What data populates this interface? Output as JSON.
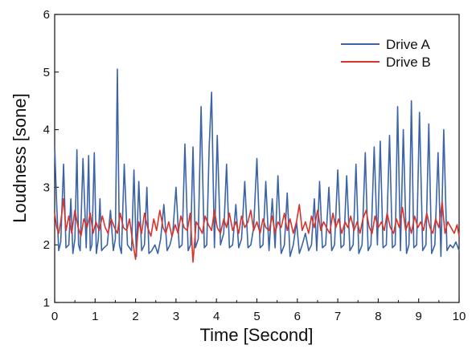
{
  "chart_data": {
    "type": "line",
    "xlabel": "Time [Second]",
    "ylabel": "Loudness [sone]",
    "xlim": [
      0,
      10
    ],
    "ylim": [
      1,
      6
    ],
    "x_ticks": [
      "0",
      "1",
      "2",
      "3",
      "4",
      "5",
      "6",
      "7",
      "8",
      "9",
      "10"
    ],
    "y_ticks": [
      "1",
      "2",
      "3",
      "4",
      "5",
      "6"
    ],
    "grid": false,
    "legend_position": "top-right",
    "series": [
      {
        "name": "Drive A",
        "color": "#3a63a8",
        "x": [
          0.0,
          0.05,
          0.1,
          0.15,
          0.22,
          0.28,
          0.35,
          0.4,
          0.45,
          0.5,
          0.55,
          0.59,
          0.63,
          0.7,
          0.78,
          0.84,
          0.88,
          0.92,
          0.98,
          1.03,
          1.08,
          1.12,
          1.16,
          1.22,
          1.3,
          1.38,
          1.45,
          1.5,
          1.55,
          1.6,
          1.65,
          1.72,
          1.8,
          1.9,
          1.96,
          2.02,
          2.08,
          2.15,
          2.22,
          2.28,
          2.33,
          2.4,
          2.48,
          2.55,
          2.62,
          2.7,
          2.78,
          2.85,
          2.92,
          3.0,
          3.08,
          3.15,
          3.22,
          3.3,
          3.36,
          3.42,
          3.48,
          3.55,
          3.62,
          3.7,
          3.76,
          3.82,
          3.88,
          3.95,
          4.02,
          4.1,
          4.18,
          4.25,
          4.32,
          4.4,
          4.48,
          4.55,
          4.62,
          4.7,
          4.78,
          4.85,
          4.92,
          5.0,
          5.08,
          5.15,
          5.22,
          5.3,
          5.38,
          5.45,
          5.52,
          5.6,
          5.68,
          5.75,
          5.82,
          5.9,
          5.98,
          6.05,
          6.12,
          6.2,
          6.28,
          6.35,
          6.42,
          6.48,
          6.55,
          6.62,
          6.7,
          6.78,
          6.85,
          6.92,
          7.0,
          7.08,
          7.15,
          7.22,
          7.3,
          7.38,
          7.45,
          7.52,
          7.6,
          7.68,
          7.75,
          7.82,
          7.9,
          7.98,
          8.05,
          8.12,
          8.2,
          8.28,
          8.35,
          8.42,
          8.48,
          8.55,
          8.62,
          8.7,
          8.76,
          8.82,
          8.88,
          8.95,
          9.02,
          9.1,
          9.18,
          9.25,
          9.32,
          9.4,
          9.48,
          9.55,
          9.62,
          9.7,
          9.78,
          9.85,
          9.92,
          10.0
        ],
        "values": [
          3.7,
          2.7,
          1.9,
          2.05,
          3.4,
          1.95,
          2.0,
          2.8,
          1.85,
          2.1,
          3.65,
          2.0,
          1.9,
          3.5,
          1.95,
          3.55,
          1.9,
          2.0,
          3.6,
          1.85,
          2.1,
          2.8,
          1.9,
          1.95,
          2.0,
          2.6,
          1.9,
          2.1,
          5.05,
          2.0,
          1.85,
          3.4,
          2.0,
          1.9,
          3.3,
          1.8,
          3.1,
          1.9,
          2.0,
          3.0,
          1.85,
          1.9,
          2.0,
          1.85,
          2.1,
          2.7,
          1.9,
          2.0,
          2.2,
          3.0,
          1.95,
          2.0,
          3.75,
          1.9,
          2.0,
          3.7,
          1.95,
          2.1,
          4.4,
          1.95,
          2.0,
          3.7,
          4.65,
          1.95,
          3.9,
          2.0,
          2.2,
          3.4,
          1.95,
          2.0,
          2.7,
          1.95,
          2.1,
          3.1,
          1.95,
          2.0,
          2.3,
          3.5,
          1.95,
          2.0,
          3.1,
          1.9,
          2.8,
          1.95,
          3.2,
          1.85,
          2.0,
          2.9,
          1.8,
          2.0,
          2.4,
          1.85,
          2.0,
          2.2,
          1.9,
          2.0,
          2.8,
          1.9,
          3.1,
          1.95,
          2.0,
          3.0,
          1.9,
          2.0,
          3.3,
          1.95,
          2.0,
          3.2,
          1.9,
          2.0,
          3.4,
          1.85,
          2.0,
          3.6,
          1.9,
          2.0,
          3.7,
          2.0,
          3.8,
          1.95,
          2.0,
          3.9,
          1.95,
          2.0,
          4.4,
          1.9,
          4.0,
          1.85,
          2.0,
          4.5,
          1.95,
          2.0,
          4.3,
          1.9,
          2.0,
          4.1,
          1.85,
          2.0,
          3.6,
          1.8,
          4.0,
          1.9,
          2.0,
          1.95,
          2.05,
          1.9
        ]
      },
      {
        "name": "Drive B",
        "color": "#d9342b",
        "x": [
          0.0,
          0.05,
          0.1,
          0.15,
          0.22,
          0.28,
          0.35,
          0.42,
          0.5,
          0.58,
          0.65,
          0.72,
          0.8,
          0.88,
          0.95,
          1.02,
          1.1,
          1.18,
          1.25,
          1.32,
          1.4,
          1.48,
          1.55,
          1.62,
          1.7,
          1.78,
          1.85,
          1.92,
          2.0,
          2.08,
          2.15,
          2.22,
          2.3,
          2.38,
          2.45,
          2.52,
          2.6,
          2.68,
          2.75,
          2.82,
          2.9,
          2.98,
          3.05,
          3.12,
          3.2,
          3.28,
          3.35,
          3.42,
          3.5,
          3.58,
          3.65,
          3.72,
          3.8,
          3.88,
          3.95,
          4.02,
          4.1,
          4.18,
          4.25,
          4.32,
          4.4,
          4.48,
          4.55,
          4.62,
          4.7,
          4.78,
          4.85,
          4.92,
          5.0,
          5.08,
          5.15,
          5.22,
          5.3,
          5.38,
          5.45,
          5.52,
          5.6,
          5.68,
          5.75,
          5.82,
          5.9,
          5.98,
          6.05,
          6.12,
          6.2,
          6.28,
          6.35,
          6.42,
          6.5,
          6.58,
          6.65,
          6.72,
          6.8,
          6.88,
          6.95,
          7.02,
          7.1,
          7.18,
          7.25,
          7.32,
          7.4,
          7.48,
          7.55,
          7.62,
          7.7,
          7.78,
          7.85,
          7.92,
          8.0,
          8.08,
          8.15,
          8.22,
          8.3,
          8.38,
          8.45,
          8.52,
          8.6,
          8.68,
          8.75,
          8.82,
          8.9,
          8.98,
          9.05,
          9.12,
          9.2,
          9.28,
          9.35,
          9.42,
          9.5,
          9.58,
          9.65,
          9.72,
          9.8,
          9.88,
          9.95,
          10.0
        ],
        "values": [
          2.55,
          2.3,
          2.2,
          2.4,
          2.8,
          2.25,
          2.5,
          2.2,
          2.6,
          2.3,
          2.15,
          2.45,
          2.3,
          2.55,
          2.2,
          2.4,
          2.25,
          2.5,
          2.3,
          2.2,
          2.45,
          2.3,
          2.2,
          2.55,
          2.3,
          2.25,
          2.45,
          2.1,
          1.75,
          2.4,
          2.2,
          2.55,
          2.3,
          2.15,
          2.45,
          2.25,
          2.6,
          2.3,
          2.2,
          2.4,
          2.15,
          2.35,
          2.2,
          2.5,
          2.3,
          2.25,
          2.55,
          1.7,
          2.4,
          2.3,
          2.2,
          2.5,
          2.35,
          2.25,
          2.6,
          2.3,
          2.2,
          2.45,
          2.3,
          2.55,
          2.25,
          2.4,
          2.2,
          2.5,
          2.3,
          2.4,
          2.6,
          2.25,
          2.4,
          2.2,
          2.45,
          2.3,
          2.25,
          2.5,
          2.2,
          2.4,
          2.3,
          2.55,
          2.25,
          2.45,
          2.2,
          2.4,
          2.7,
          2.25,
          2.4,
          2.2,
          2.5,
          2.3,
          2.6,
          2.25,
          2.4,
          2.3,
          2.2,
          2.55,
          2.3,
          2.45,
          2.2,
          2.4,
          2.3,
          2.5,
          2.25,
          2.4,
          2.2,
          2.45,
          2.6,
          2.3,
          2.2,
          2.5,
          2.3,
          2.4,
          2.25,
          2.55,
          2.3,
          2.2,
          2.45,
          2.3,
          2.65,
          2.25,
          2.4,
          2.2,
          2.5,
          2.3,
          2.4,
          2.25,
          2.55,
          2.3,
          2.2,
          2.45,
          2.3,
          2.75,
          2.2,
          2.4,
          2.3,
          2.2,
          2.35,
          2.15
        ]
      }
    ]
  }
}
